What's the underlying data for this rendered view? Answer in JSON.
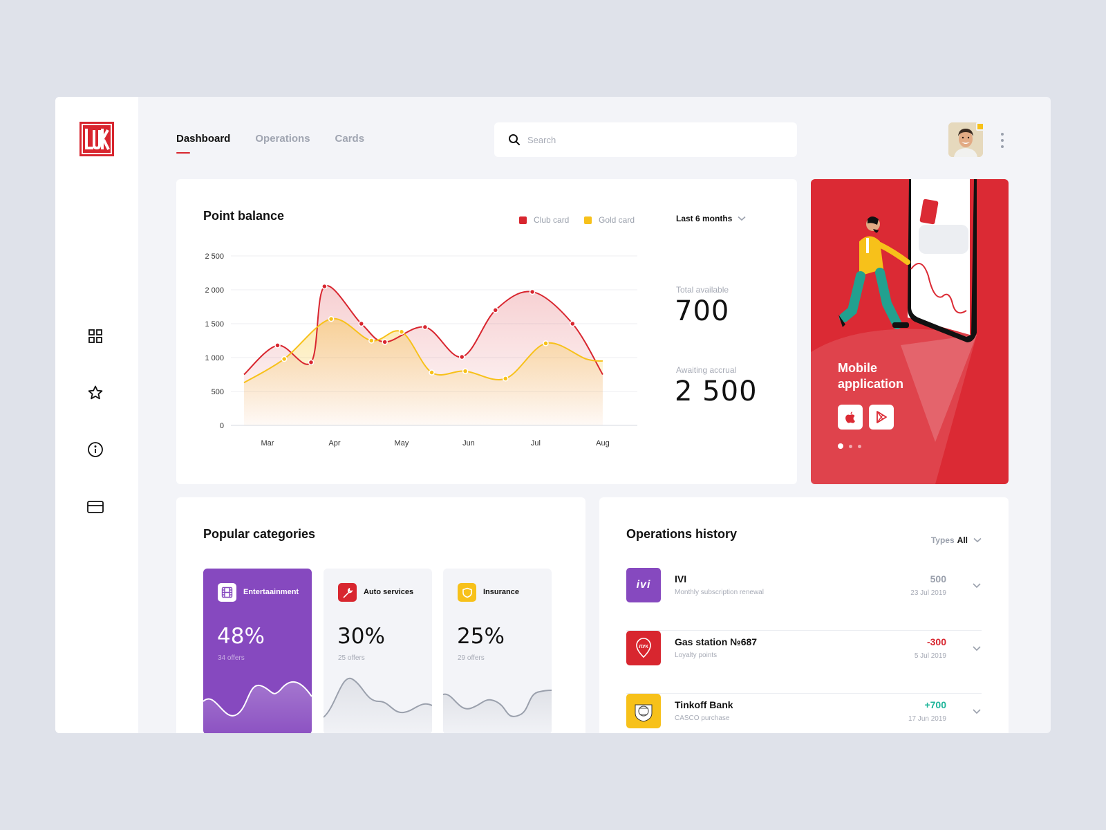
{
  "brand": {
    "logo_text": "ЛУК",
    "accent": "#d8262f"
  },
  "sidebar": {
    "icons": [
      {
        "name": "dashboard-icon"
      },
      {
        "name": "star-icon"
      },
      {
        "name": "info-icon"
      },
      {
        "name": "card-icon"
      }
    ]
  },
  "header": {
    "tabs": [
      {
        "label": "Dashboard",
        "active": true
      },
      {
        "label": "Operations",
        "active": false
      },
      {
        "label": "Cards",
        "active": false
      }
    ],
    "search_placeholder": "Search"
  },
  "balance": {
    "title": "Point balance",
    "legend": [
      {
        "label": "Club card",
        "color": "#d8262f"
      },
      {
        "label": "Gold card",
        "color": "#f7c11a"
      }
    ],
    "period": "Last 6 months",
    "total_label": "Total available",
    "total_value": "700",
    "awaiting_label": "Awaiting accrual",
    "awaiting_value": "2 500"
  },
  "chart_data": {
    "type": "line",
    "x_labels": [
      "Mar",
      "Apr",
      "May",
      "Jun",
      "Jul",
      "Aug"
    ],
    "y_ticks": [
      "0",
      "500",
      "1 000",
      "1 500",
      "2 000",
      "2 500"
    ],
    "ylim": [
      0,
      2500
    ],
    "grid": true,
    "series": [
      {
        "name": "Club card",
        "color": "#d8262f",
        "points": [
          [
            0,
            750
          ],
          [
            0.5,
            1180
          ],
          [
            1.0,
            930
          ],
          [
            1.2,
            2050
          ],
          [
            1.75,
            1500
          ],
          [
            2.1,
            1230
          ],
          [
            2.7,
            1450
          ],
          [
            3.25,
            1010
          ],
          [
            3.75,
            1700
          ],
          [
            4.3,
            1970
          ],
          [
            4.9,
            1500
          ],
          [
            5.35,
            750
          ]
        ],
        "markers": [
          0.5,
          1.0,
          1.2,
          1.75,
          2.1,
          2.7,
          3.25,
          3.75,
          4.3,
          4.9
        ]
      },
      {
        "name": "Gold card",
        "color": "#f7c11a",
        "points": [
          [
            0,
            630
          ],
          [
            0.6,
            980
          ],
          [
            1.3,
            1570
          ],
          [
            1.9,
            1250
          ],
          [
            2.35,
            1380
          ],
          [
            2.8,
            780
          ],
          [
            3.3,
            800
          ],
          [
            3.9,
            690
          ],
          [
            4.5,
            1210
          ],
          [
            5.1,
            980
          ],
          [
            5.35,
            950
          ]
        ],
        "markers": [
          0.6,
          1.3,
          1.9,
          2.35,
          2.8,
          3.3,
          3.9,
          4.5
        ]
      }
    ]
  },
  "promo": {
    "title_line1": "Mobile",
    "title_line2": "application",
    "buttons": [
      {
        "name": "apple-store-button"
      },
      {
        "name": "google-play-button"
      }
    ],
    "slides": 3,
    "active_slide": 0
  },
  "categories": {
    "title": "Popular categories",
    "items": [
      {
        "name": "Entertaainment",
        "pct": "48%",
        "offers": "34 offers",
        "icon": "film-icon",
        "icon_bg": "#ffffff",
        "highlight": true
      },
      {
        "name": "Auto services",
        "pct": "30%",
        "offers": "25 offers",
        "icon": "wrench-icon",
        "icon_bg": "#d8262f",
        "highlight": false
      },
      {
        "name": "Insurance",
        "pct": "25%",
        "offers": "29 offers",
        "icon": "shield-icon",
        "icon_bg": "#f7c11a",
        "highlight": false
      }
    ]
  },
  "operations": {
    "title": "Operations history",
    "types_label": "Types",
    "types_value": "All",
    "items": [
      {
        "name": "IVI",
        "sub": "Monthly subscription renewal",
        "amount": "500",
        "date": "23 Jul 2019",
        "amount_color": "#9aa0ac",
        "logo_bg": "#8649bf",
        "logo_text": "ivi"
      },
      {
        "name": "Gas station №687",
        "sub": "Loyalty points",
        "amount": "-300",
        "date": "5 Jul 2019",
        "amount_color": "#d8262f",
        "logo_bg": "#d8262f",
        "logo_text": "ЛУК"
      },
      {
        "name": "Tinkoff Bank",
        "sub": "CASCO purchase",
        "amount": "+700",
        "date": "17 Jun 2019",
        "amount_color": "#1fb59a",
        "logo_bg": "#f7c11a",
        "logo_text": ""
      }
    ]
  }
}
